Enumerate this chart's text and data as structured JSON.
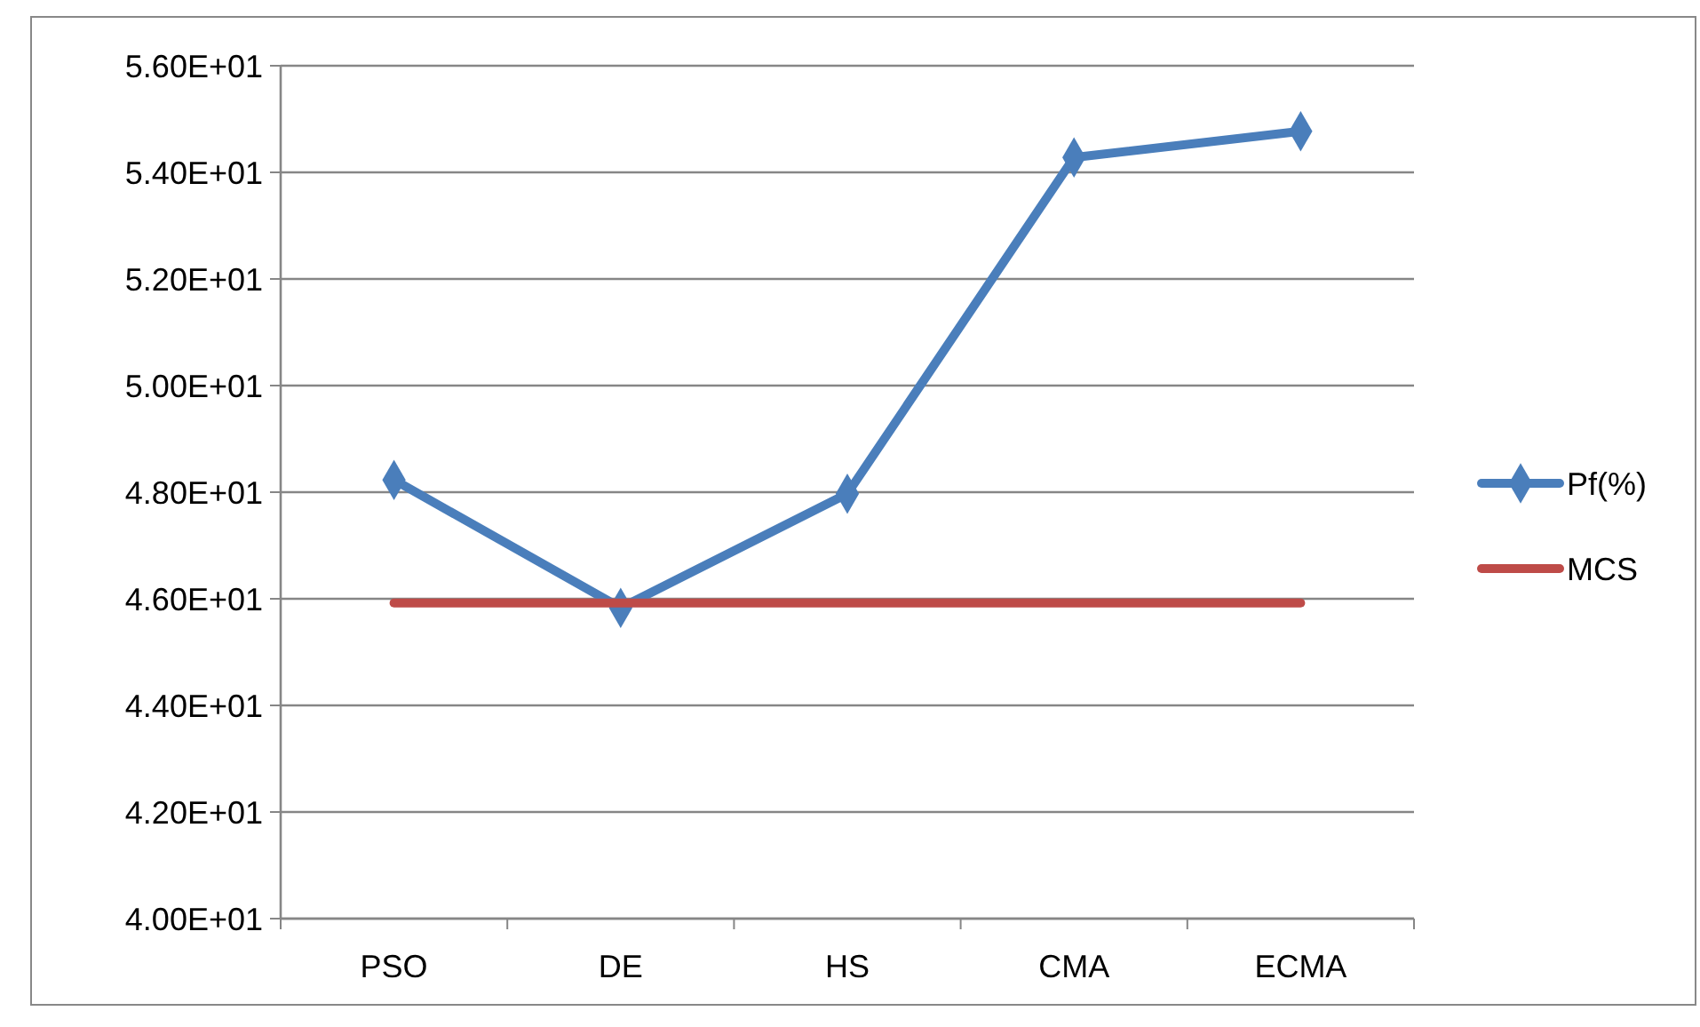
{
  "chart_data": {
    "type": "line",
    "categories": [
      "PSO",
      "DE",
      "HS",
      "CMA",
      "ECMA"
    ],
    "series": [
      {
        "name": "Pf(%)",
        "color": "#4a7ebb",
        "values": [
          48.23,
          45.83,
          47.97,
          54.28,
          54.77
        ],
        "marker": "diamond"
      },
      {
        "name": "MCS",
        "color": "#be4b48",
        "values": [
          45.92,
          45.92,
          45.92,
          45.92,
          45.92
        ],
        "marker": "none"
      }
    ],
    "ylim": [
      40,
      56
    ],
    "yticks": [
      {
        "value": 40,
        "label": "4.00E+01"
      },
      {
        "value": 42,
        "label": "4.20E+01"
      },
      {
        "value": 44,
        "label": "4.40E+01"
      },
      {
        "value": 46,
        "label": "4.60E+01"
      },
      {
        "value": 48,
        "label": "4.80E+01"
      },
      {
        "value": 50,
        "label": "5.00E+01"
      },
      {
        "value": 52,
        "label": "5.20E+01"
      },
      {
        "value": 54,
        "label": "5.40E+01"
      },
      {
        "value": 56,
        "label": "5.60E+01"
      }
    ],
    "grid": "y",
    "legend": "right",
    "line_style": "solid"
  }
}
